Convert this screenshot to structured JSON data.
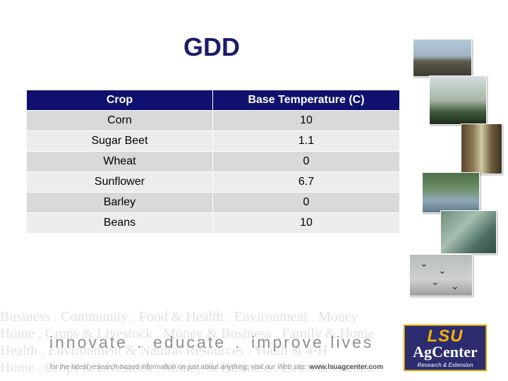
{
  "slide": {
    "title": "GDD"
  },
  "table": {
    "headers": [
      "Crop",
      "Base Temperature (C)"
    ],
    "rows": [
      {
        "crop": "Corn",
        "base_temp": "10"
      },
      {
        "crop": "Sugar Beet",
        "base_temp": "1.1"
      },
      {
        "crop": "Wheat",
        "base_temp": "0"
      },
      {
        "crop": "Sunflower",
        "base_temp": "6.7"
      },
      {
        "crop": "Barley",
        "base_temp": "0"
      },
      {
        "crop": "Beans",
        "base_temp": "10"
      }
    ]
  },
  "footer": {
    "tagline": [
      "innovate",
      ".",
      "educate",
      ".",
      "improve lives"
    ],
    "subline": "for the latest research-based information on just about anything, visit our Web site:",
    "url": "www.lsuagcenter.com",
    "watermark_lines": [
      "Business . Community . Food & Health . Environment . Money",
      "Home . Crops & Livestock . Money & Business . Family & Home",
      "Health . Environment & Natural Resources . Youth & 4-H",
      "Home . Crops & Livestock . Money & Business . Lawn & Garden"
    ]
  },
  "logo": {
    "top": "LSU",
    "main": "AgCenter",
    "sub": "Research & Extension"
  },
  "colors": {
    "title": "#1c1c6e",
    "header_bg": "#10106e",
    "row_odd": "#d9d9d9",
    "row_even": "#ececec",
    "logo_bg": "#2b2b6e",
    "logo_accent": "#f2b400"
  }
}
